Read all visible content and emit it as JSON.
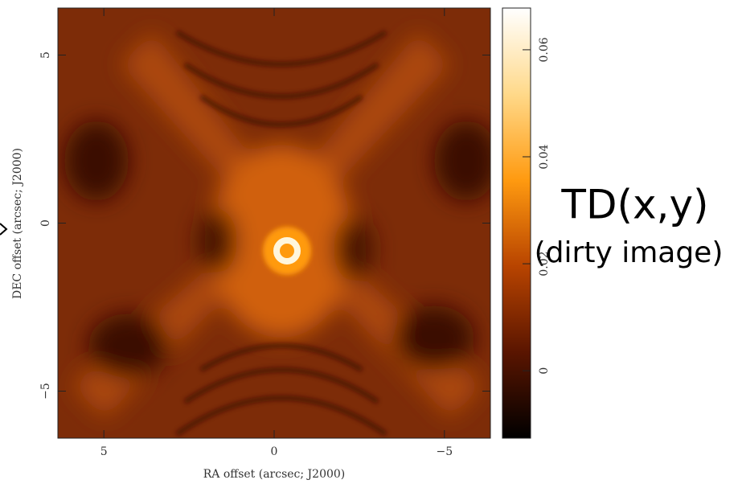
{
  "chart_data": {
    "type": "heatmap",
    "xlabel": "RA offset (arcsec; J2000)",
    "ylabel": "DEC offset (arcsec; J2000)",
    "xlim": [
      6.35,
      -6.35
    ],
    "ylim": [
      -6.4,
      6.4
    ],
    "xticks": [
      5,
      0,
      {
        "value": -5,
        "label": "−5"
      }
    ],
    "yticks": [
      {
        "value": -5,
        "label": "−5"
      },
      0,
      5
    ],
    "colorbar": {
      "lim": [
        -0.0126,
        0.0678
      ],
      "ticks": [
        0,
        0.02,
        0.04,
        0.06
      ],
      "colormap": [
        "#000000",
        "#5a1500",
        "#b84400",
        "#ff9a10",
        "#ffd98a",
        "#ffffff"
      ]
    },
    "annotations": [
      "TD(x,y)",
      "(dirty image)"
    ]
  }
}
